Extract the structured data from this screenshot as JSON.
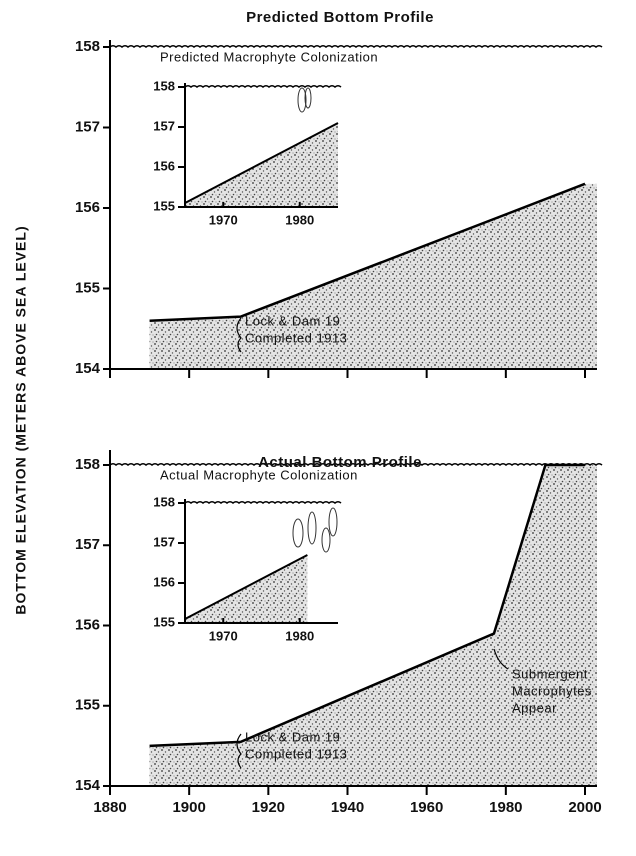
{
  "ylabel": "BOTTOM ELEVATION (METERS ABOVE SEA LEVEL)",
  "chart_data": [
    {
      "type": "area",
      "title": "Predicted Bottom Profile",
      "x": [
        1890,
        1913,
        2000
      ],
      "values": [
        154.6,
        154.65,
        156.3
      ],
      "water_level": 158,
      "water_label": "Predicted Macrophyte Colonization",
      "annotations": [
        [
          "Lock & Dam 19",
          "Completed 1913"
        ]
      ],
      "xlim": [
        1880,
        2000
      ],
      "xticks": [
        1880,
        1900,
        1920,
        1940,
        1960,
        1980,
        2000
      ],
      "xtick_labels": false,
      "ylim": [
        154,
        158
      ],
      "yticks": [
        154,
        155,
        156,
        157,
        158
      ]
    },
    {
      "type": "area",
      "x": [
        1965,
        1985
      ],
      "values": [
        155.1,
        157.1
      ],
      "water_level": 158,
      "xlim": [
        1965,
        1985
      ],
      "xticks": [
        1970,
        1980
      ],
      "ylim": [
        155,
        158
      ],
      "yticks": [
        155,
        156,
        157,
        158
      ]
    },
    {
      "type": "area",
      "title": "Actual Bottom Profile",
      "x": [
        1890,
        1913,
        1977,
        1990,
        2000
      ],
      "values": [
        154.5,
        154.55,
        155.9,
        158,
        158
      ],
      "water_level": 158,
      "water_label": "Actual Macrophyte Colonization",
      "annotations": [
        [
          "Lock & Dam 19",
          "Completed 1913"
        ],
        [
          "Submergent",
          "Macrophytes",
          "Appear"
        ]
      ],
      "xlim": [
        1880,
        2000
      ],
      "xticks": [
        1880,
        1900,
        1920,
        1940,
        1960,
        1980,
        2000
      ],
      "ylim": [
        154,
        158
      ],
      "yticks": [
        154,
        155,
        156,
        157,
        158
      ]
    },
    {
      "type": "area",
      "x": [
        1965,
        1981
      ],
      "values": [
        155.1,
        156.7
      ],
      "water_level": 158,
      "xlim": [
        1965,
        1985
      ],
      "xticks": [
        1970,
        1980
      ],
      "ylim": [
        155,
        158
      ],
      "yticks": [
        155,
        156,
        157,
        158
      ]
    }
  ]
}
